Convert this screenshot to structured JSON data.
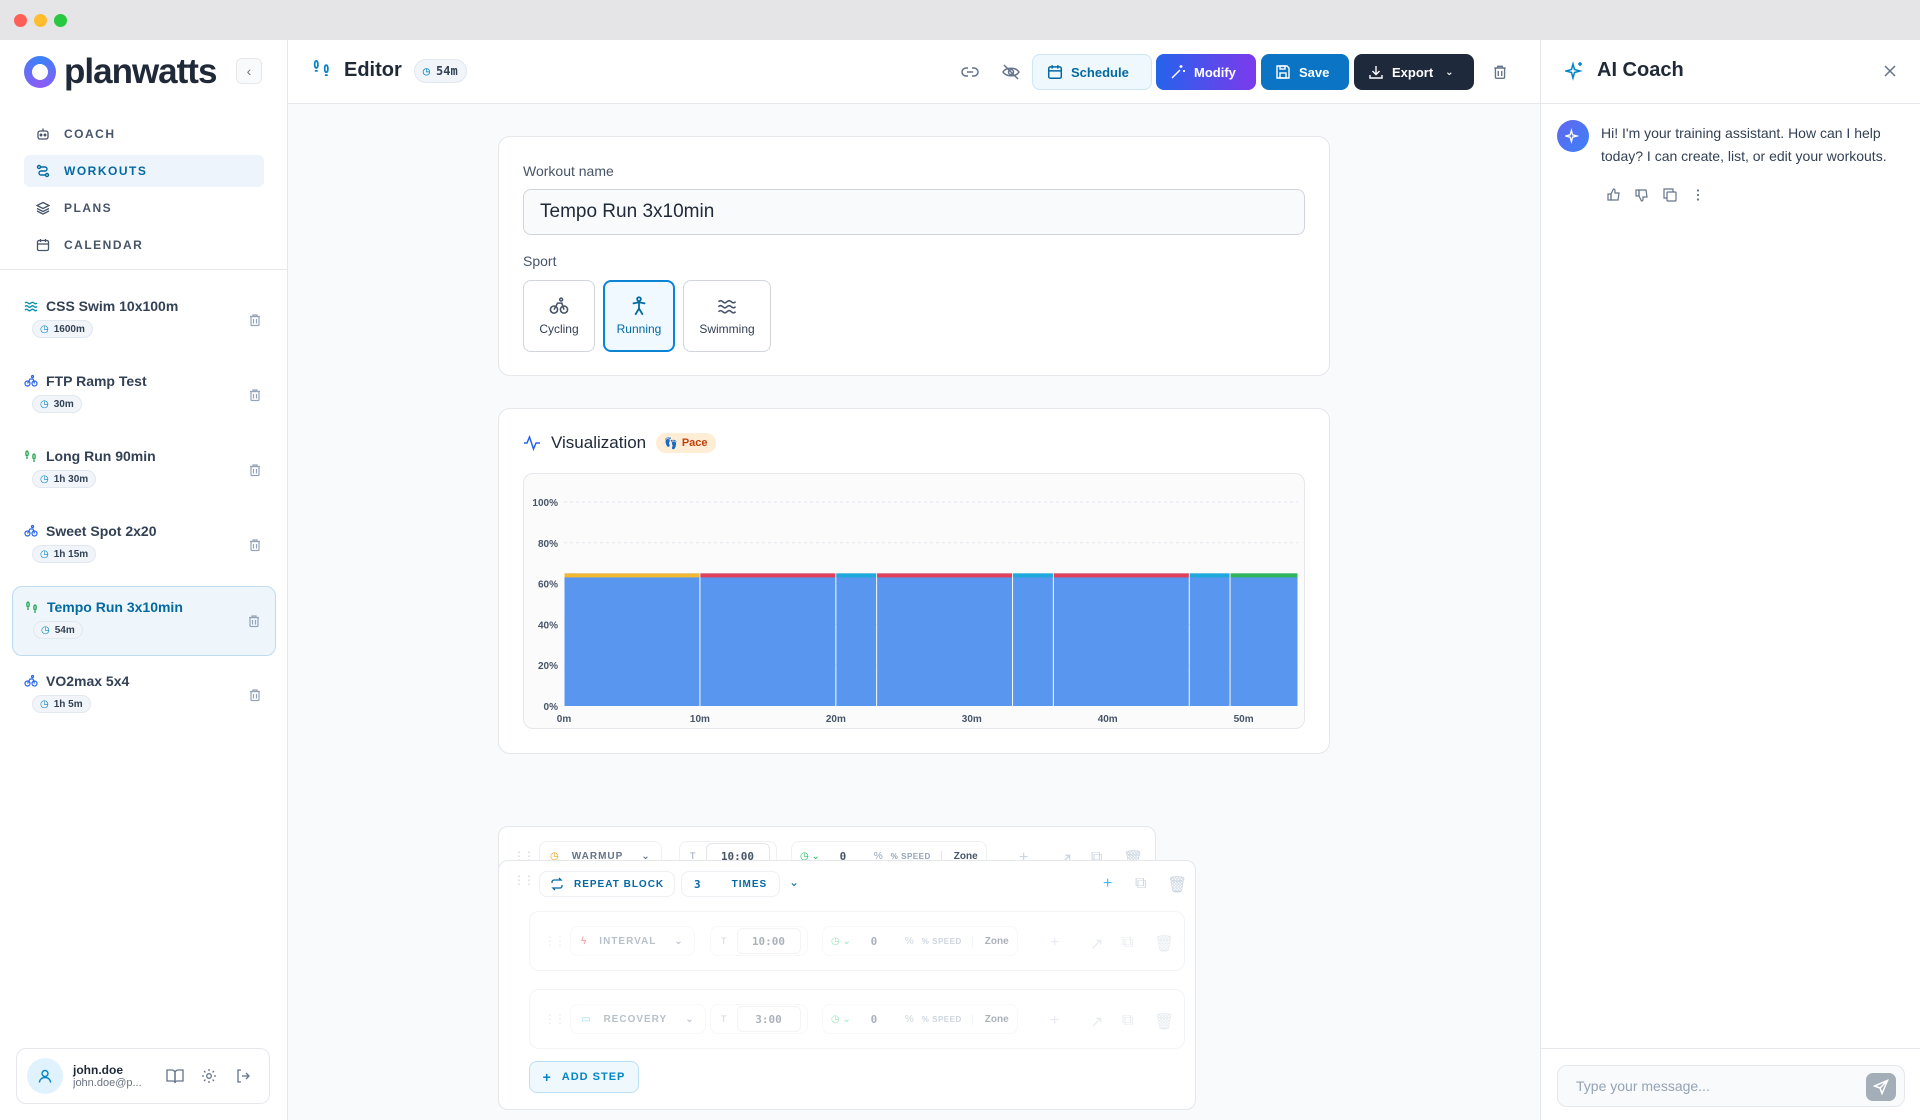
{
  "brand": {
    "name": "planwatts"
  },
  "nav": [
    {
      "label": "COACH",
      "icon": "bot-icon",
      "active": false
    },
    {
      "label": "WORKOUTS",
      "icon": "route-icon",
      "active": true
    },
    {
      "label": "PLANS",
      "icon": "layers-icon",
      "active": false
    },
    {
      "label": "CALENDAR",
      "icon": "calendar-icon",
      "active": false
    }
  ],
  "workouts": [
    {
      "title": "CSS Swim 10x100m",
      "duration": "1600m",
      "sport": "swimming",
      "active": false
    },
    {
      "title": "FTP Ramp Test",
      "duration": "30m",
      "sport": "cycling",
      "active": false
    },
    {
      "title": "Long Run 90min",
      "duration": "1h 30m",
      "sport": "running",
      "active": false
    },
    {
      "title": "Sweet Spot 2x20",
      "duration": "1h 15m",
      "sport": "cycling",
      "active": false
    },
    {
      "title": "Tempo Run 3x10min",
      "duration": "54m",
      "sport": "running",
      "active": true
    },
    {
      "title": "VO2max 5x4",
      "duration": "1h 5m",
      "sport": "cycling",
      "active": false
    }
  ],
  "user": {
    "name": "john.doe",
    "email": "john.doe@p..."
  },
  "header": {
    "title": "Editor",
    "duration": "54m",
    "schedule_label": "Schedule",
    "modify_label": "Modify",
    "save_label": "Save",
    "export_label": "Export"
  },
  "form": {
    "name_label": "Workout name",
    "name_value": "Tempo Run 3x10min",
    "sport_label": "Sport",
    "sports": [
      "Cycling",
      "Running",
      "Swimming"
    ],
    "selected_sport": "Running"
  },
  "viz": {
    "title": "Visualization",
    "badge": "Pace"
  },
  "chart_data": {
    "type": "bar",
    "x_unit": "minutes",
    "y_ticks": [
      "0%",
      "20%",
      "40%",
      "60%",
      "80%",
      "100%"
    ],
    "x_ticks": [
      "0m",
      "10m",
      "20m",
      "30m",
      "40m",
      "50m"
    ],
    "ylim": [
      0,
      100
    ],
    "xlim": [
      0,
      54
    ],
    "segments": [
      {
        "start": 0,
        "end": 10,
        "value": 65,
        "top_color": "#f2b833"
      },
      {
        "start": 10,
        "end": 20,
        "value": 65,
        "top_color": "#e0405a"
      },
      {
        "start": 20,
        "end": 23,
        "value": 65,
        "top_color": "#1fa8dc"
      },
      {
        "start": 23,
        "end": 33,
        "value": 65,
        "top_color": "#e0405a"
      },
      {
        "start": 33,
        "end": 36,
        "value": 65,
        "top_color": "#1fa8dc"
      },
      {
        "start": 36,
        "end": 46,
        "value": 65,
        "top_color": "#e0405a"
      },
      {
        "start": 46,
        "end": 49,
        "value": 65,
        "top_color": "#1fa8dc"
      },
      {
        "start": 49,
        "end": 54,
        "value": 65,
        "top_color": "#2fb55a"
      }
    ],
    "bar_color": "#5896f0"
  },
  "steps": {
    "warmup": {
      "type": "WARMUP",
      "duration_label": "T",
      "duration": "10:00",
      "value": "0",
      "unit": "%",
      "speed": "% SPEED",
      "zone": "Zone"
    },
    "repeat": {
      "type": "REPEAT BLOCK",
      "count": "3",
      "times": "TIMES"
    },
    "interval": {
      "type": "INTERVAL",
      "duration_label": "T",
      "duration": "10:00",
      "value": "0",
      "unit": "%",
      "speed": "% SPEED",
      "zone": "Zone"
    },
    "recovery": {
      "type": "RECOVERY",
      "duration_label": "T",
      "duration": "3:00",
      "value": "0",
      "unit": "%",
      "speed": "% SPEED",
      "zone": "Zone"
    },
    "add_step_label": "ADD STEP"
  },
  "coach": {
    "title": "AI Coach",
    "message": "Hi! I'm your training assistant. How can I help today? I can create, list, or edit your workouts.",
    "input_placeholder": "Type your message..."
  }
}
